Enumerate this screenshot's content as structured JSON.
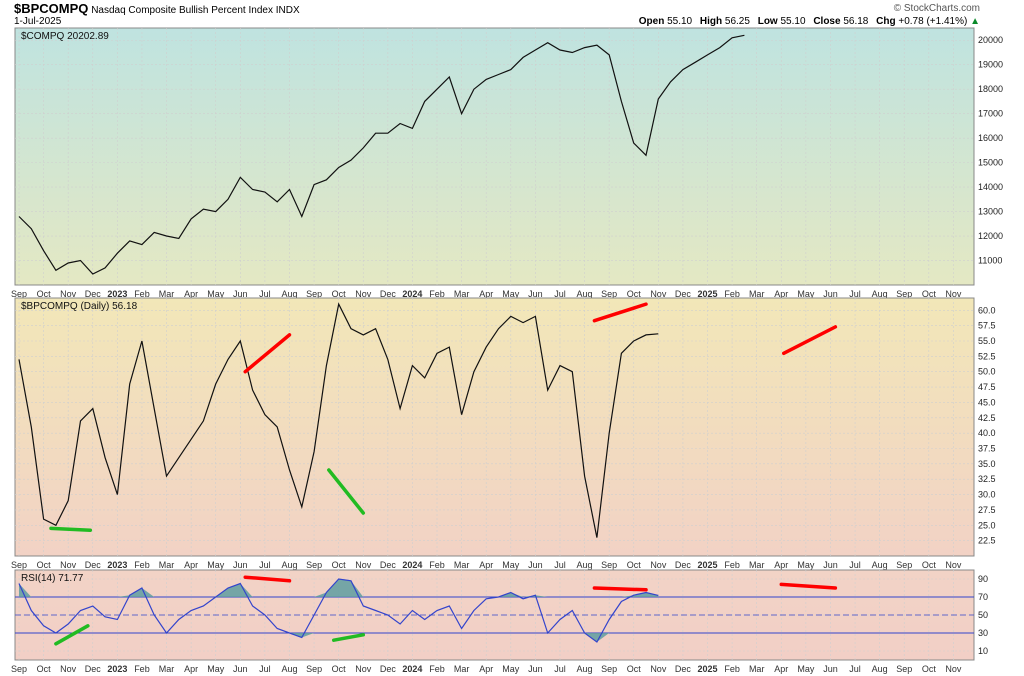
{
  "header": {
    "ticker": "$BPCOMPQ",
    "name": "Nasdaq Composite Bullish Percent Index",
    "exchange": "INDX",
    "date": "1-Jul-2025",
    "brand": "© StockCharts.com",
    "open_label": "Open",
    "open": "55.10",
    "high_label": "High",
    "high": "56.25",
    "low_label": "Low",
    "low": "55.10",
    "close_label": "Close",
    "close": "56.18",
    "chg_label": "Chg",
    "chg": "+0.78 (+1.41%)",
    "up_arrow": "▲"
  },
  "colors": {
    "line": "#111111",
    "accent_red": "#ff0000",
    "accent_green": "#22bb22",
    "rsi_line": "#3344cc",
    "rsi_fill": "#5f9ea0"
  },
  "x_axis": {
    "ticks": [
      {
        "label": "Sep",
        "bold": false
      },
      {
        "label": "Oct",
        "bold": false
      },
      {
        "label": "Nov",
        "bold": false
      },
      {
        "label": "Dec",
        "bold": false
      },
      {
        "label": "2023",
        "bold": true
      },
      {
        "label": "Feb",
        "bold": false
      },
      {
        "label": "Mar",
        "bold": false
      },
      {
        "label": "Apr",
        "bold": false
      },
      {
        "label": "May",
        "bold": false
      },
      {
        "label": "Jun",
        "bold": false
      },
      {
        "label": "Jul",
        "bold": false
      },
      {
        "label": "Aug",
        "bold": false
      },
      {
        "label": "Sep",
        "bold": false
      },
      {
        "label": "Oct",
        "bold": false
      },
      {
        "label": "Nov",
        "bold": false
      },
      {
        "label": "Dec",
        "bold": false
      },
      {
        "label": "2024",
        "bold": true
      },
      {
        "label": "Feb",
        "bold": false
      },
      {
        "label": "Mar",
        "bold": false
      },
      {
        "label": "Apr",
        "bold": false
      },
      {
        "label": "May",
        "bold": false
      },
      {
        "label": "Jun",
        "bold": false
      },
      {
        "label": "Jul",
        "bold": false
      },
      {
        "label": "Aug",
        "bold": false
      },
      {
        "label": "Sep",
        "bold": false
      },
      {
        "label": "Oct",
        "bold": false
      },
      {
        "label": "Nov",
        "bold": false
      },
      {
        "label": "Dec",
        "bold": false
      },
      {
        "label": "2025",
        "bold": true
      },
      {
        "label": "Feb",
        "bold": false
      },
      {
        "label": "Mar",
        "bold": false
      },
      {
        "label": "Apr",
        "bold": false
      },
      {
        "label": "May",
        "bold": false
      },
      {
        "label": "Jun",
        "bold": false
      },
      {
        "label": "Jul",
        "bold": false
      },
      {
        "label": "Aug",
        "bold": false
      },
      {
        "label": "Sep",
        "bold": false
      },
      {
        "label": "Oct",
        "bold": false
      },
      {
        "label": "Nov",
        "bold": false
      }
    ]
  },
  "chart_data": [
    {
      "type": "line",
      "title": "$COMPQ 20202.89",
      "ylim": [
        10000,
        20500
      ],
      "yticks": [
        11000,
        12000,
        13000,
        14000,
        15000,
        16000,
        17000,
        18000,
        19000,
        20000
      ],
      "x": [
        0,
        0.5,
        1,
        1.5,
        2,
        2.5,
        3,
        3.5,
        4,
        4.5,
        5,
        5.5,
        6,
        6.5,
        7,
        7.5,
        8,
        8.5,
        9,
        9.5,
        10,
        10.5,
        11,
        11.5,
        12,
        12.5,
        13,
        13.5,
        14,
        14.5,
        15,
        15.5,
        16,
        16.5,
        17,
        17.5,
        18,
        18.5,
        19,
        19.5,
        20,
        20.5,
        21,
        21.5,
        22,
        22.5,
        23,
        23.5,
        24,
        24.5,
        25,
        25.5,
        26,
        26.5,
        27,
        27.5,
        28,
        28.5,
        29,
        29.5,
        30,
        30.5,
        31,
        31.5,
        32,
        32.5,
        33,
        33.5,
        34,
        34.5
      ],
      "y": [
        12800,
        12300,
        11400,
        10600,
        10900,
        11000,
        10450,
        10700,
        11300,
        11800,
        11650,
        12150,
        12000,
        11900,
        12700,
        13100,
        13000,
        13500,
        14400,
        13900,
        13800,
        13400,
        13900,
        12800,
        14100,
        14300,
        14800,
        15100,
        15600,
        16200,
        16200,
        16600,
        16400,
        17500,
        18000,
        18500,
        17000,
        18000,
        18400,
        18600,
        18800,
        19300,
        19600,
        19900,
        19600,
        19500,
        19700,
        19800,
        19400,
        17500,
        15800,
        15300,
        17600,
        18300,
        18800,
        19100,
        19400,
        19700,
        20100,
        20202.89,
        null,
        null,
        null,
        null,
        null,
        null,
        null,
        null,
        null,
        null
      ],
      "line_color": "#111111"
    },
    {
      "type": "line",
      "title": "$BPCOMPQ (Daily) 56.18",
      "ylim": [
        20,
        62
      ],
      "yticks": [
        22.5,
        25.0,
        27.5,
        30.0,
        32.5,
        35.0,
        37.5,
        40.0,
        42.5,
        45.0,
        47.5,
        50.0,
        52.5,
        55.0,
        57.5,
        60.0
      ],
      "x": [
        0,
        0.5,
        1,
        1.5,
        2,
        2.5,
        3,
        3.5,
        4,
        4.5,
        5,
        5.5,
        6,
        6.5,
        7,
        7.5,
        8,
        8.5,
        9,
        9.5,
        10,
        10.5,
        11,
        11.5,
        12,
        12.5,
        13,
        13.5,
        14,
        14.5,
        15,
        15.5,
        16,
        16.5,
        17,
        17.5,
        18,
        18.5,
        19,
        19.5,
        20,
        20.5,
        21,
        21.5,
        22,
        22.5,
        23,
        23.5,
        24,
        24.5,
        25,
        25.5,
        26,
        26.5,
        27,
        27.5,
        28,
        28.5,
        29,
        29.5,
        30,
        30.5,
        31,
        31.5,
        32,
        32.5,
        33,
        33.5,
        34,
        34.5
      ],
      "y": [
        52,
        41,
        26,
        25,
        29,
        42,
        44,
        36,
        30,
        48,
        55,
        44,
        33,
        36,
        39,
        42,
        48,
        52,
        55,
        47,
        43,
        41,
        34,
        28,
        37,
        51,
        61,
        57,
        56,
        57,
        52,
        44,
        51,
        49,
        53,
        54,
        43,
        50,
        54,
        57,
        59,
        58,
        59,
        47,
        51,
        50,
        33,
        23,
        40,
        53,
        55,
        56,
        56.18,
        null,
        null,
        null,
        null,
        null,
        null,
        null,
        null,
        null,
        null,
        null,
        null,
        null,
        null,
        null,
        null,
        null
      ],
      "line_color": "#111111",
      "annotations": [
        {
          "color": "#22bb22",
          "x0": 1.3,
          "y0": 24.5,
          "x1": 2.9,
          "y1": 24.2
        },
        {
          "color": "#ff0000",
          "x0": 9.2,
          "y0": 50,
          "x1": 11.0,
          "y1": 56
        },
        {
          "color": "#22bb22",
          "x0": 12.6,
          "y0": 34,
          "x1": 14.0,
          "y1": 27
        },
        {
          "color": "#ff0000",
          "x0": 23.4,
          "y0": 58.3,
          "x1": 25.5,
          "y1": 61
        },
        {
          "color": "#ff0000",
          "x0": 31.1,
          "y0": 53,
          "x1": 33.2,
          "y1": 57.3
        }
      ]
    },
    {
      "type": "area",
      "title": "RSI(14) 71.77",
      "ylim": [
        0,
        100
      ],
      "yticks": [
        10,
        30,
        50,
        70,
        90
      ],
      "overbought": 70,
      "oversold": 30,
      "midline": 50,
      "x": [
        0,
        0.5,
        1,
        1.5,
        2,
        2.5,
        3,
        3.5,
        4,
        4.5,
        5,
        5.5,
        6,
        6.5,
        7,
        7.5,
        8,
        8.5,
        9,
        9.5,
        10,
        10.5,
        11,
        11.5,
        12,
        12.5,
        13,
        13.5,
        14,
        14.5,
        15,
        15.5,
        16,
        16.5,
        17,
        17.5,
        18,
        18.5,
        19,
        19.5,
        20,
        20.5,
        21,
        21.5,
        22,
        22.5,
        23,
        23.5,
        24,
        24.5,
        25,
        25.5,
        26,
        26.5,
        27,
        27.5,
        28,
        28.5,
        29,
        29.5,
        30,
        30.5,
        31,
        31.5,
        32,
        32.5,
        33,
        33.5,
        34,
        34.5
      ],
      "y": [
        85,
        55,
        38,
        30,
        40,
        55,
        60,
        48,
        45,
        72,
        80,
        50,
        30,
        45,
        55,
        60,
        70,
        80,
        85,
        60,
        50,
        35,
        30,
        25,
        50,
        75,
        90,
        88,
        60,
        55,
        50,
        40,
        55,
        45,
        55,
        60,
        35,
        55,
        68,
        70,
        75,
        68,
        72,
        30,
        45,
        55,
        30,
        20,
        45,
        65,
        72,
        75,
        71.77,
        null,
        null,
        null,
        null,
        null,
        null,
        null,
        null,
        null,
        null,
        null,
        null,
        null,
        null,
        null,
        null,
        null
      ],
      "line_color": "#3344cc",
      "fill_color": "#5f9ea0",
      "annotations": [
        {
          "color": "#22bb22",
          "x0": 1.5,
          "y0": 18,
          "x1": 2.8,
          "y1": 38
        },
        {
          "color": "#ff0000",
          "x0": 9.2,
          "y0": 92,
          "x1": 11.0,
          "y1": 88
        },
        {
          "color": "#22bb22",
          "x0": 12.8,
          "y0": 22,
          "x1": 14.0,
          "y1": 28
        },
        {
          "color": "#ff0000",
          "x0": 23.4,
          "y0": 80,
          "x1": 25.5,
          "y1": 78
        },
        {
          "color": "#ff0000",
          "x0": 31.0,
          "y0": 84,
          "x1": 33.2,
          "y1": 80
        }
      ]
    }
  ]
}
